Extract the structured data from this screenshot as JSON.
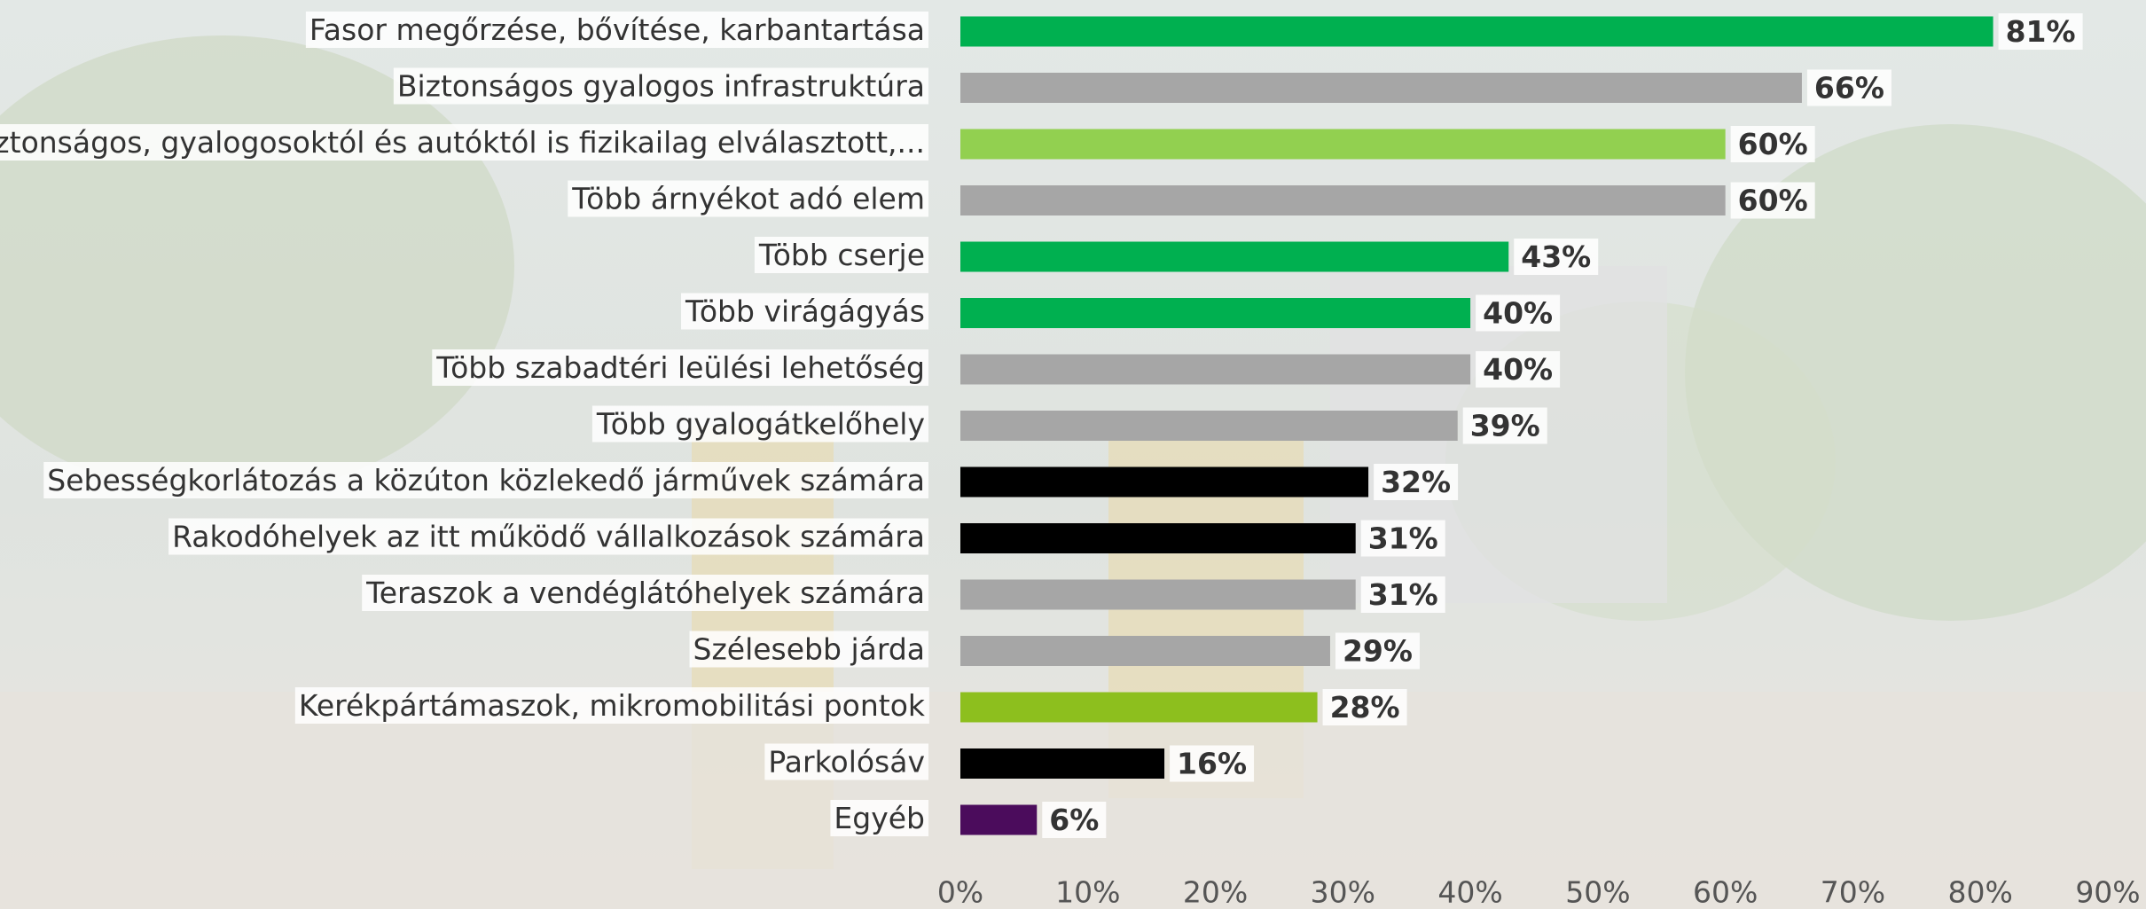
{
  "chart_data": {
    "type": "bar",
    "orientation": "horizontal",
    "categories": [
      "Fasor megőrzése, bővítése, karbantartása",
      "Biztonságos gyalogos infrastruktúra",
      "Biztonságos, gyalogosoktól és autóktól is fizikailag elválasztott,...",
      "Több árnyékot adó elem",
      "Több cserje",
      "Több virágágyás",
      "Több szabadtéri leülési lehetőség",
      "Több gyalogátkelőhely",
      "Sebességkorlátozás a közúton közlekedő járművek számára",
      "Rakodóhelyek az itt működő vállalkozások számára",
      "Teraszok a vendéglátóhelyek számára",
      "Szélesebb járda",
      "Kerékpártámaszok, mikromobilitási pontok",
      "Parkolósáv",
      "Egyéb"
    ],
    "values": [
      81,
      66,
      60,
      60,
      43,
      40,
      40,
      39,
      32,
      31,
      31,
      29,
      28,
      16,
      6
    ],
    "value_labels": [
      "81%",
      "66%",
      "60%",
      "60%",
      "43%",
      "40%",
      "40%",
      "39%",
      "32%",
      "31%",
      "31%",
      "29%",
      "28%",
      "16%",
      "6%"
    ],
    "colors": [
      "#00b050",
      "#a6a6a6",
      "#92d050",
      "#a6a6a6",
      "#00b050",
      "#00b050",
      "#a6a6a6",
      "#a6a6a6",
      "#000000",
      "#000000",
      "#a6a6a6",
      "#a6a6a6",
      "#8dbf1e",
      "#000000",
      "#4b0c5c"
    ],
    "xlim": [
      0,
      90
    ],
    "xticks": [
      {
        "value": 0,
        "label": "0%"
      },
      {
        "value": 10,
        "label": "10%"
      },
      {
        "value": 20,
        "label": "20%"
      },
      {
        "value": 30,
        "label": "30%"
      },
      {
        "value": 40,
        "label": "40%"
      },
      {
        "value": 50,
        "label": "50%"
      },
      {
        "value": 60,
        "label": "60%"
      },
      {
        "value": 70,
        "label": "70%"
      },
      {
        "value": 80,
        "label": "80%"
      },
      {
        "value": 90,
        "label": "90%"
      }
    ]
  }
}
